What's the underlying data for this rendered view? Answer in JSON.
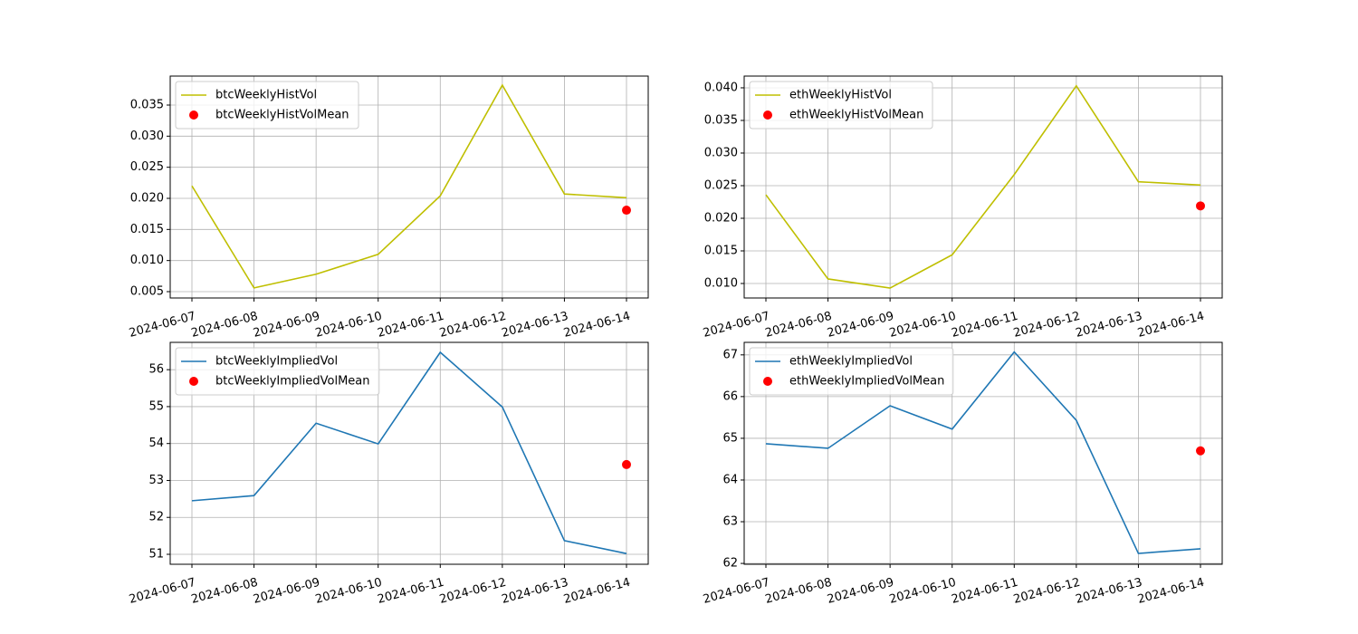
{
  "chart_data": [
    {
      "type": "line",
      "grid": true,
      "legend": "upper left",
      "x": [
        "2024-06-07",
        "2024-06-08",
        "2024-06-09",
        "2024-06-10",
        "2024-06-11",
        "2024-06-12",
        "2024-06-13",
        "2024-06-14"
      ],
      "series": [
        {
          "name": "btcWeeklyHistVol",
          "kind": "line",
          "color": "#bfbf00",
          "values": [
            0.022,
            0.0056,
            0.0078,
            0.011,
            0.0204,
            0.0382,
            0.0207,
            0.0201
          ]
        },
        {
          "name": "btcWeeklyHistVolMean",
          "kind": "scatter",
          "color": "#ff0000",
          "values": [
            null,
            null,
            null,
            null,
            null,
            null,
            null,
            0.0181
          ]
        }
      ],
      "ylim": [
        0.00398,
        0.03966
      ],
      "yticks": [
        0.005,
        {
          "value": 0.01,
          "label": "0.010"
        },
        0.015,
        {
          "value": 0.02,
          "label": "0.020"
        },
        0.025,
        {
          "value": 0.03,
          "label": "0.030"
        },
        0.035
      ]
    },
    {
      "type": "line",
      "grid": true,
      "legend": "upper left",
      "x": [
        "2024-06-07",
        "2024-06-08",
        "2024-06-09",
        "2024-06-10",
        "2024-06-11",
        "2024-06-12",
        "2024-06-13",
        "2024-06-14"
      ],
      "series": [
        {
          "name": "ethWeeklyHistVol",
          "kind": "line",
          "color": "#bfbf00",
          "values": [
            0.0236,
            0.0107,
            0.0093,
            0.0144,
            0.0267,
            0.0403,
            0.0256,
            0.0251
          ]
        },
        {
          "name": "ethWeeklyHistVolMean",
          "kind": "scatter",
          "color": "#ff0000",
          "values": [
            null,
            null,
            null,
            null,
            null,
            null,
            null,
            0.0219
          ]
        }
      ],
      "ylim": [
        0.00778,
        0.0418
      ],
      "yticks": [
        {
          "value": 0.01,
          "label": "0.010"
        },
        0.015,
        {
          "value": 0.02,
          "label": "0.020"
        },
        0.025,
        {
          "value": 0.03,
          "label": "0.030"
        },
        0.035,
        {
          "value": 0.04,
          "label": "0.040"
        }
      ]
    },
    {
      "type": "line",
      "grid": true,
      "legend": "upper left",
      "x": [
        "2024-06-07",
        "2024-06-08",
        "2024-06-09",
        "2024-06-10",
        "2024-06-11",
        "2024-06-12",
        "2024-06-13",
        "2024-06-14"
      ],
      "series": [
        {
          "name": "btcWeeklyImpliedVol",
          "kind": "line",
          "color": "#1f77b4",
          "values": [
            52.45,
            52.59,
            54.55,
            53.99,
            56.47,
            54.99,
            51.37,
            51.02
          ]
        },
        {
          "name": "btcWeeklyImpliedVolMean",
          "kind": "scatter",
          "color": "#ff0000",
          "values": [
            null,
            null,
            null,
            null,
            null,
            null,
            null,
            53.43
          ]
        }
      ],
      "ylim": [
        50.73,
        56.74
      ],
      "yticks": [
        51,
        52,
        53,
        54,
        55,
        56
      ]
    },
    {
      "type": "line",
      "grid": true,
      "legend": "upper left",
      "x": [
        "2024-06-07",
        "2024-06-08",
        "2024-06-09",
        "2024-06-10",
        "2024-06-11",
        "2024-06-12",
        "2024-06-13",
        "2024-06-14"
      ],
      "series": [
        {
          "name": "ethWeeklyImpliedVol",
          "kind": "line",
          "color": "#1f77b4",
          "values": [
            64.87,
            64.76,
            65.78,
            65.22,
            67.07,
            65.43,
            62.24,
            62.35
          ]
        },
        {
          "name": "ethWeeklyImpliedVolMean",
          "kind": "scatter",
          "color": "#ff0000",
          "values": [
            null,
            null,
            null,
            null,
            null,
            null,
            null,
            64.7
          ]
        }
      ],
      "ylim": [
        61.98,
        67.3
      ],
      "yticks": [
        62,
        63,
        64,
        65,
        66,
        67
      ]
    }
  ]
}
